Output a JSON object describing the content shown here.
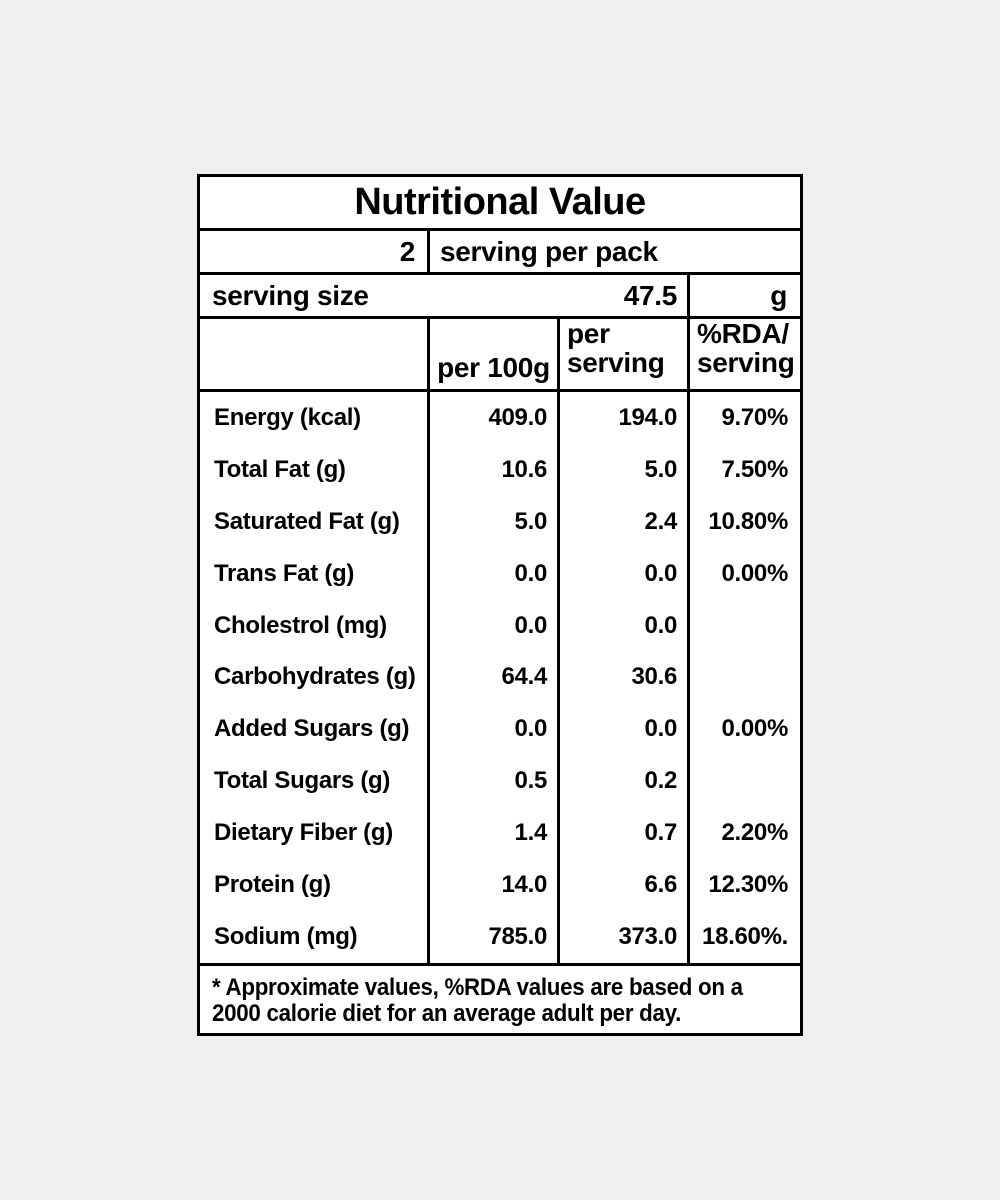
{
  "colors": {
    "page_background": "#efefef",
    "label_background": "#ffffff",
    "border": "#000000",
    "text": "#000000"
  },
  "label": {
    "title": "Nutritional Value",
    "servings_per_pack": {
      "count": "2",
      "text": "serving per pack"
    },
    "serving_size": {
      "label": "serving size",
      "value": "47.5",
      "unit": "g"
    },
    "columns": {
      "per_100g": "per 100g",
      "per_serving_line1": "per",
      "per_serving_line2": "serving",
      "rda_line1": "%RDA/",
      "rda_line2": "serving"
    },
    "rows": [
      {
        "name": "Energy (kcal)",
        "per_100g": "409.0",
        "per_serving": "194.0",
        "rda": "9.70%"
      },
      {
        "name": "Total Fat (g)",
        "per_100g": "10.6",
        "per_serving": "5.0",
        "rda": "7.50%"
      },
      {
        "name": "Saturated Fat (g)",
        "per_100g": "5.0",
        "per_serving": "2.4",
        "rda": "10.80%"
      },
      {
        "name": "Trans Fat (g)",
        "per_100g": "0.0",
        "per_serving": "0.0",
        "rda": "0.00%"
      },
      {
        "name": "Cholestrol (mg)",
        "per_100g": "0.0",
        "per_serving": "0.0",
        "rda": ""
      },
      {
        "name": "Carbohydrates (g)",
        "per_100g": "64.4",
        "per_serving": "30.6",
        "rda": ""
      },
      {
        "name": "Added Sugars (g)",
        "per_100g": "0.0",
        "per_serving": "0.0",
        "rda": "0.00%"
      },
      {
        "name": "Total Sugars (g)",
        "per_100g": "0.5",
        "per_serving": "0.2",
        "rda": ""
      },
      {
        "name": "Dietary Fiber (g)",
        "per_100g": "1.4",
        "per_serving": "0.7",
        "rda": "2.20%"
      },
      {
        "name": "Protein (g)",
        "per_100g": "14.0",
        "per_serving": "6.6",
        "rda": "12.30%"
      },
      {
        "name": "Sodium (mg)",
        "per_100g": "785.0",
        "per_serving": "373.0",
        "rda": "18.60%."
      }
    ],
    "footnote_line1": "* Approximate values, %RDA values are based on a",
    "footnote_line2": "2000 calorie diet for an average adult per day."
  }
}
